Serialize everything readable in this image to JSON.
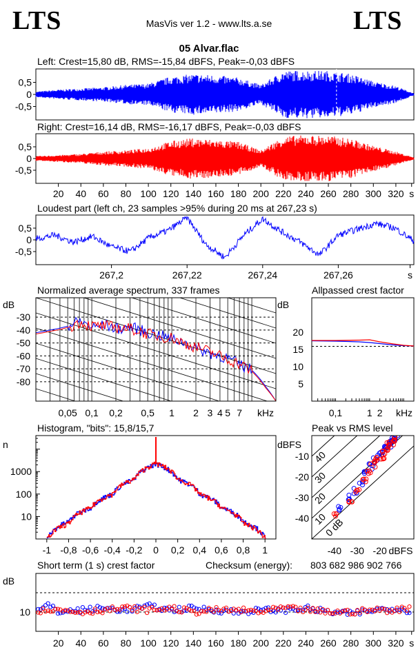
{
  "header": {
    "logo_left": "LTS",
    "logo_right": "LTS",
    "app_title": "MasVis ver 1.2 - www.lts.a.se",
    "file_title": "05 Alvar.flac"
  },
  "colors": {
    "left": "#0000ff",
    "right": "#ff0000",
    "grid": "#000000"
  },
  "panels": {
    "left": {
      "label": "Left: Crest=15,80 dB, RMS=-15,84 dBFS, Peak=-0,03 dBFS"
    },
    "right": {
      "label": "Right: Crest=16,14 dB, RMS=-16,17 dBFS, Peak=-0,03 dBFS"
    },
    "loudest": {
      "label": "Loudest part (left  ch, 23 samples >95% during 20 ms at 267,23 s)"
    },
    "spectrum": {
      "label": "Normalized average spectrum, 337 frames",
      "unit_y": "dB",
      "unit_x": "kHz"
    },
    "allpass": {
      "label": "Allpassed crest factor",
      "unit_y": "dB",
      "unit_x": "kHz"
    },
    "histogram": {
      "label": "Histogram, \"bits\": 15,8/15,7",
      "unit_y": "n"
    },
    "peakrms": {
      "label": "Peak vs RMS level",
      "unit": "dBFS",
      "diag_labels": [
        "40",
        "30",
        "20",
        "10",
        "0 dB"
      ]
    },
    "shortterm": {
      "label": "Short term (1 s) crest factor",
      "checksum_label": "Checksum (energy):",
      "checksum_value": "803 682 986 902 766",
      "unit_y": "dB",
      "unit_x": "s"
    }
  },
  "chart_data": [
    {
      "type": "area",
      "title": "Left: Crest=15,80 dB, RMS=-15,84 dBFS, Peak=-0,03 dBFS",
      "xlabel": "s",
      "xlim": [
        0,
        336
      ],
      "ylim": [
        -1,
        1
      ],
      "yticks": [
        "0,5",
        "0",
        "-0,5"
      ],
      "envelope": {
        "x": [
          0,
          20,
          40,
          60,
          80,
          100,
          120,
          140,
          160,
          180,
          200,
          220,
          240,
          260,
          280,
          300,
          320,
          336
        ],
        "y": [
          0.12,
          0.2,
          0.25,
          0.3,
          0.4,
          0.45,
          0.75,
          0.85,
          0.8,
          0.7,
          0.4,
          0.98,
          1.0,
          0.98,
          0.85,
          0.55,
          0.35,
          0.05
        ]
      },
      "marker_s": 267.23
    },
    {
      "type": "area",
      "title": "Right: Crest=16,14 dB, RMS=-16,17 dBFS, Peak=-0,03 dBFS",
      "xlabel": "s",
      "xlim": [
        0,
        336
      ],
      "ylim": [
        -1,
        1
      ],
      "yticks": [
        "0,5",
        "0",
        "-0,5"
      ],
      "xticks": [
        "20",
        "40",
        "60",
        "80",
        "100",
        "120",
        "140",
        "160",
        "180",
        "200",
        "220",
        "240",
        "260",
        "280",
        "300",
        "320",
        "s"
      ],
      "envelope": {
        "x": [
          0,
          20,
          40,
          60,
          80,
          100,
          120,
          140,
          160,
          180,
          200,
          220,
          240,
          260,
          280,
          300,
          320,
          336
        ],
        "y": [
          0.1,
          0.15,
          0.2,
          0.3,
          0.35,
          0.45,
          0.75,
          0.88,
          0.8,
          0.72,
          0.35,
          0.95,
          1.0,
          0.98,
          0.85,
          0.55,
          0.3,
          0.05
        ]
      }
    },
    {
      "type": "line",
      "title": "Loudest part (left  ch, 23 samples >95% during 20 ms at 267,23 s)",
      "xlabel": "s",
      "xlim": [
        267.18,
        267.28
      ],
      "ylim": [
        -1,
        1
      ],
      "xticks": [
        "267,2",
        "267,22",
        "267,24",
        "267,26",
        "s"
      ],
      "yticks": [
        "0,5",
        "0",
        "-0,5"
      ],
      "x": [
        267.18,
        267.185,
        267.19,
        267.195,
        267.2,
        267.205,
        267.21,
        267.215,
        267.22,
        267.225,
        267.23,
        267.235,
        267.24,
        267.245,
        267.25,
        267.255,
        267.26,
        267.265,
        267.27,
        267.275,
        267.28
      ],
      "y": [
        0.05,
        0.2,
        -0.1,
        0.15,
        -0.3,
        -0.5,
        0.1,
        0.4,
        0.95,
        -0.2,
        -0.75,
        0.2,
        0.9,
        0.35,
        -0.1,
        -0.65,
        0.2,
        0.45,
        0.7,
        0.5,
        -0.05
      ]
    },
    {
      "type": "line",
      "title": "Normalized average spectrum, 337 frames",
      "xlabel": "kHz",
      "ylabel": "dB",
      "xscale": "log",
      "xlim": [
        0.02,
        20
      ],
      "ylim": [
        -95,
        -15
      ],
      "xticks": [
        "0,05",
        "0,1",
        "0,2",
        "0,5",
        "1",
        "2",
        "3",
        "4",
        "5",
        "7",
        "kHz"
      ],
      "yticks": [
        "-30",
        "-40",
        "-50",
        "-60",
        "-70",
        "-80"
      ],
      "series": [
        {
          "x": [
            0.02,
            0.03,
            0.05,
            0.07,
            0.1,
            0.15,
            0.2,
            0.3,
            0.5,
            0.7,
            1,
            1.5,
            2,
            3,
            5,
            7,
            10,
            15,
            20
          ],
          "y": [
            -42,
            -40,
            -37,
            -33,
            -38,
            -36,
            -39,
            -38,
            -42,
            -44,
            -47,
            -50,
            -54,
            -58,
            -62,
            -67,
            -71,
            -84,
            -95
          ]
        },
        {
          "x": [
            0.02,
            0.03,
            0.05,
            0.07,
            0.1,
            0.15,
            0.2,
            0.3,
            0.5,
            0.7,
            1,
            1.5,
            2,
            3,
            5,
            7,
            10,
            15,
            20
          ],
          "y": [
            -43,
            -41,
            -38,
            -34,
            -37,
            -37,
            -38,
            -39,
            -43,
            -45,
            -46,
            -51,
            -53,
            -57,
            -63,
            -66,
            -72,
            -85,
            -95
          ]
        }
      ]
    },
    {
      "type": "line",
      "title": "Allpassed crest factor",
      "xlabel": "kHz",
      "ylabel": "dB",
      "xscale": "log",
      "xlim": [
        0.02,
        20
      ],
      "ylim": [
        0,
        30
      ],
      "xticks": [
        "0,1",
        "1",
        "2",
        "kHz"
      ],
      "yticks": [
        "20",
        "15",
        "10",
        "5"
      ],
      "series": [
        {
          "x": [
            0.02,
            0.1,
            0.5,
            1,
            2,
            5,
            10,
            20
          ],
          "y": [
            17.5,
            17.4,
            17.2,
            17.0,
            16.7,
            16.3,
            16.1,
            16.0
          ]
        },
        {
          "x": [
            0.02,
            0.1,
            0.5,
            1,
            2,
            5,
            10,
            20
          ],
          "y": [
            17.6,
            17.6,
            17.7,
            17.8,
            17.2,
            16.6,
            16.2,
            16.0
          ]
        }
      ]
    },
    {
      "type": "line",
      "title": "Histogram, \"bits\": 15,8/15,7",
      "ylabel": "n",
      "yscale": "log",
      "xlim": [
        -1.1,
        1.1
      ],
      "ylim": [
        1,
        40000
      ],
      "xticks": [
        "-1",
        "-0,8",
        "-0,6",
        "-0,4",
        "-0,2",
        "0",
        "0,2",
        "0,4",
        "0,6",
        "0,8",
        "1"
      ],
      "yticks": [
        "1000",
        "100",
        "10"
      ],
      "series": [
        {
          "x": [
            -1.0,
            -0.8,
            -0.6,
            -0.4,
            -0.2,
            0,
            0.2,
            0.4,
            0.6,
            0.8,
            1.0
          ],
          "y": [
            1,
            6,
            25,
            100,
            450,
            2200,
            450,
            100,
            25,
            6,
            1
          ]
        },
        {
          "x": [
            -1.0,
            -0.8,
            -0.6,
            -0.4,
            -0.2,
            0,
            0.2,
            0.4,
            0.6,
            0.8,
            1.0
          ],
          "y": [
            1,
            5,
            24,
            100,
            460,
            2300,
            460,
            95,
            24,
            5,
            1
          ]
        }
      ]
    },
    {
      "type": "scatter",
      "title": "Peak vs RMS level",
      "xlabel": "dBFS",
      "ylabel": "dBFS",
      "xlim": [
        -50,
        -5
      ],
      "ylim": [
        -50,
        0
      ],
      "xticks": [
        "-40",
        "-30",
        "-20",
        "dBFS"
      ],
      "yticks": [
        "-10",
        "-20",
        "-30",
        "-40"
      ],
      "series": [
        {
          "x": [
            -38,
            -34,
            -31,
            -28,
            -26,
            -24,
            -22,
            -20,
            -18,
            -17,
            -16,
            -15,
            -14,
            -13
          ],
          "y": [
            -35,
            -30,
            -27,
            -23,
            -17,
            -15,
            -12,
            -9,
            -7,
            -6,
            -5,
            -3,
            -2,
            -1
          ]
        },
        {
          "x": [
            -40,
            -33,
            -30,
            -27,
            -25,
            -23,
            -21,
            -19,
            -18,
            -17,
            -16,
            -14,
            -13
          ],
          "y": [
            -38,
            -31,
            -26,
            -22,
            -18,
            -14,
            -12,
            -10,
            -8,
            -6,
            -4,
            -3,
            -1
          ]
        }
      ]
    },
    {
      "type": "scatter",
      "title": "Short term (1 s) crest factor",
      "xlabel": "s",
      "ylabel": "dB",
      "xlim": [
        0,
        336
      ],
      "ylim": [
        0,
        30
      ],
      "xticks": [
        "20",
        "40",
        "60",
        "80",
        "100",
        "120",
        "140",
        "160",
        "180",
        "200",
        "220",
        "240",
        "260",
        "280",
        "300",
        "320",
        "s"
      ],
      "yticks": [
        "10"
      ],
      "series": [
        {
          "x": [
            5,
            10,
            15,
            20,
            40,
            60,
            80,
            100,
            120,
            140,
            160,
            180,
            200,
            220,
            240,
            260,
            280,
            300,
            320,
            330
          ],
          "y": [
            11,
            14,
            12,
            10,
            11,
            12,
            11,
            13,
            11,
            12,
            11,
            10,
            11,
            11,
            12,
            10,
            9,
            11,
            12,
            11
          ]
        },
        {
          "x": [
            5,
            10,
            15,
            20,
            40,
            60,
            80,
            100,
            120,
            140,
            160,
            180,
            200,
            220,
            240,
            260,
            280,
            300,
            320,
            330
          ],
          "y": [
            10,
            12,
            11,
            11,
            10,
            11,
            12,
            11,
            12,
            10,
            11,
            11,
            10,
            12,
            11,
            10,
            10,
            11,
            11,
            12
          ]
        }
      ]
    }
  ]
}
